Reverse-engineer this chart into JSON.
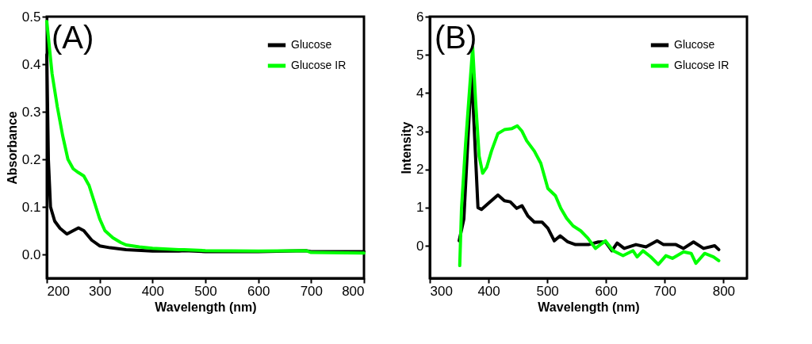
{
  "chart_data": [
    {
      "type": "line",
      "xlabel": "Wavelength (nm)",
      "ylabel": "Absorbance",
      "annotations": [
        "(A)"
      ],
      "xlim": [
        200,
        800
      ],
      "xticks": [
        200,
        300,
        400,
        500,
        600,
        700,
        800
      ],
      "ylim": [
        -0.05,
        0.5
      ],
      "yticks": [
        {
          "value": 0,
          "label": "0.0"
        },
        0.1,
        0.2,
        0.3,
        0.4,
        0.5
      ],
      "legend": "top right",
      "grid": false,
      "marker": "none",
      "line_style": "solid",
      "series": [
        {
          "name": "Glucose",
          "color": "#000000",
          "x": [
            200,
            203,
            207,
            215,
            225,
            238,
            250,
            260,
            270,
            285,
            300,
            320,
            350,
            400,
            450,
            460,
            500,
            600,
            690,
            700,
            800
          ],
          "values": [
            0.42,
            0.2,
            0.1,
            0.07,
            0.055,
            0.043,
            0.05,
            0.056,
            0.05,
            0.03,
            0.018,
            0.014,
            0.01,
            0.007,
            0.007,
            0.008,
            0.006,
            0.006,
            0.008,
            0.006,
            0.006
          ]
        },
        {
          "name": "Glucose IR",
          "color": "#00ff00",
          "x": [
            200,
            210,
            220,
            230,
            240,
            250,
            260,
            270,
            280,
            290,
            300,
            310,
            325,
            340,
            350,
            375,
            400,
            450,
            460,
            500,
            600,
            690,
            700,
            800
          ],
          "values": [
            0.49,
            0.38,
            0.31,
            0.25,
            0.2,
            0.18,
            0.172,
            0.165,
            0.145,
            0.11,
            0.075,
            0.05,
            0.035,
            0.025,
            0.02,
            0.016,
            0.013,
            0.01,
            0.01,
            0.008,
            0.007,
            0.008,
            0.004,
            0.003
          ]
        }
      ]
    },
    {
      "type": "line",
      "xlabel": "Wavelength (nm)",
      "ylabel": "Intensity",
      "annotations": [
        "(B)"
      ],
      "xlim": [
        300,
        840
      ],
      "xticks": [
        300,
        400,
        500,
        600,
        700,
        800
      ],
      "ylim": [
        -0.85,
        6
      ],
      "yticks": [
        0,
        1,
        2,
        3,
        4,
        5,
        6
      ],
      "legend": "top right",
      "grid": false,
      "marker": "none",
      "line_style": "solid",
      "series": [
        {
          "name": "Glucose",
          "color": "#000000",
          "x": [
            350,
            358,
            371,
            382,
            388,
            399,
            416,
            427,
            437,
            448,
            457,
            467,
            478,
            491,
            501,
            512,
            522,
            535,
            548,
            570,
            587,
            599,
            610,
            619,
            631,
            651,
            668,
            687,
            698,
            719,
            732,
            749,
            766,
            785,
            792
          ],
          "values": [
            0.13,
            0.7,
            4.6,
            1.0,
            0.95,
            1.1,
            1.33,
            1.18,
            1.15,
            0.98,
            1.05,
            0.78,
            0.62,
            0.62,
            0.46,
            0.13,
            0.26,
            0.1,
            0.03,
            0.03,
            0.1,
            0.1,
            -0.13,
            0.07,
            -0.07,
            0.03,
            -0.03,
            0.13,
            0.03,
            0.03,
            -0.07,
            0.1,
            -0.07,
            0.0,
            -0.1
          ]
        },
        {
          "name": "Glucose IR",
          "color": "#00ff00",
          "x": [
            351,
            354,
            361,
            373,
            378,
            384,
            390,
            397,
            405,
            416,
            427,
            440,
            449,
            457,
            465,
            478,
            489,
            501,
            514,
            523,
            533,
            544,
            557,
            569,
            582,
            599,
            612,
            629,
            646,
            653,
            663,
            676,
            689,
            702,
            713,
            732,
            745,
            753,
            768,
            783,
            792
          ],
          "values": [
            -0.52,
            0.98,
            2.68,
            5.2,
            3.79,
            2.35,
            1.9,
            2.06,
            2.48,
            2.94,
            3.04,
            3.07,
            3.14,
            3.0,
            2.75,
            2.48,
            2.16,
            1.5,
            1.31,
            0.98,
            0.72,
            0.52,
            0.39,
            0.2,
            -0.07,
            0.13,
            -0.13,
            -0.26,
            -0.13,
            -0.29,
            -0.13,
            -0.29,
            -0.49,
            -0.26,
            -0.33,
            -0.16,
            -0.2,
            -0.46,
            -0.2,
            -0.29,
            -0.39
          ]
        }
      ]
    }
  ]
}
